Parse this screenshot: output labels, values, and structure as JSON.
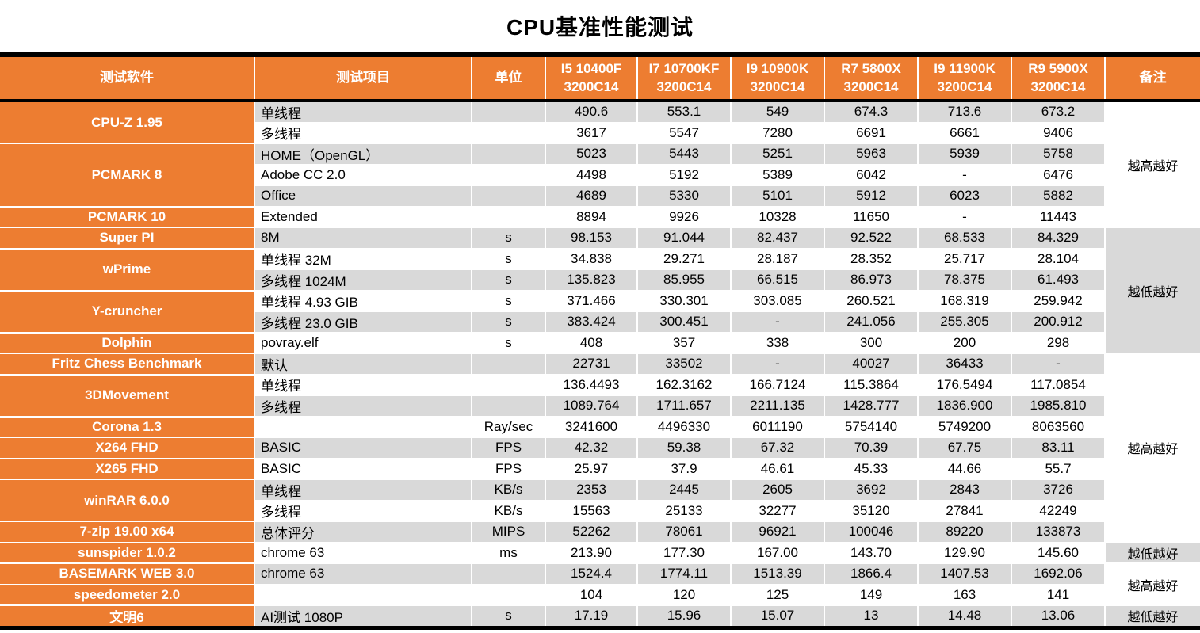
{
  "title": "CPU基准性能测试",
  "colors": {
    "orange": "#ED7D31",
    "row_gray": "#D9D9D9",
    "bar_black": "#000000",
    "header_text": "#FFFFFF",
    "body_text": "#000000"
  },
  "chart_data": {
    "type": "table",
    "title": "CPU基准性能测试",
    "header": {
      "software": "测试软件",
      "item": "测试项目",
      "unit": "单位",
      "cpus": [
        [
          "I5 10400F",
          "3200C14"
        ],
        [
          "I7 10700KF",
          "3200C14"
        ],
        [
          "I9 10900K",
          "3200C14"
        ],
        [
          "R7 5800X",
          "3200C14"
        ],
        [
          "I9 11900K",
          "3200C14"
        ],
        [
          "R9 5900X",
          "3200C14"
        ]
      ],
      "remark": "备注"
    },
    "groups": [
      {
        "software": "CPU-Z 1.95",
        "rows": [
          {
            "item": "单线程",
            "unit": "",
            "values": [
              "490.6",
              "553.1",
              "549",
              "674.3",
              "713.6",
              "673.2"
            ]
          },
          {
            "item": "多线程",
            "unit": "",
            "values": [
              "3617",
              "5547",
              "7280",
              "6691",
              "6661",
              "9406"
            ]
          }
        ]
      },
      {
        "software": "PCMARK 8",
        "rows": [
          {
            "item": "HOME（OpenGL）",
            "unit": "",
            "values": [
              "5023",
              "5443",
              "5251",
              "5963",
              "5939",
              "5758"
            ]
          },
          {
            "item": "Adobe CC 2.0",
            "unit": "",
            "values": [
              "4498",
              "5192",
              "5389",
              "6042",
              "-",
              "6476"
            ]
          },
          {
            "item": "Office",
            "unit": "",
            "values": [
              "4689",
              "5330",
              "5101",
              "5912",
              "6023",
              "5882"
            ]
          }
        ]
      },
      {
        "software": "PCMARK 10",
        "rows": [
          {
            "item": "Extended",
            "unit": "",
            "values": [
              "8894",
              "9926",
              "10328",
              "11650",
              "-",
              "11443"
            ]
          }
        ]
      },
      {
        "software": "Super PI",
        "rows": [
          {
            "item": "8M",
            "unit": "s",
            "values": [
              "98.153",
              "91.044",
              "82.437",
              "92.522",
              "68.533",
              "84.329"
            ]
          }
        ]
      },
      {
        "software": "wPrime",
        "rows": [
          {
            "item": "单线程 32M",
            "unit": "s",
            "values": [
              "34.838",
              "29.271",
              "28.187",
              "28.352",
              "25.717",
              "28.104"
            ]
          },
          {
            "item": "多线程 1024M",
            "unit": "s",
            "values": [
              "135.823",
              "85.955",
              "66.515",
              "86.973",
              "78.375",
              "61.493"
            ]
          }
        ]
      },
      {
        "software": "Y-cruncher",
        "rows": [
          {
            "item": "单线程 4.93 GIB",
            "unit": "s",
            "values": [
              "371.466",
              "330.301",
              "303.085",
              "260.521",
              "168.319",
              "259.942"
            ]
          },
          {
            "item": "多线程 23.0 GIB",
            "unit": "s",
            "values": [
              "383.424",
              "300.451",
              "-",
              "241.056",
              "255.305",
              "200.912"
            ]
          }
        ]
      },
      {
        "software": "Dolphin",
        "rows": [
          {
            "item": "povray.elf",
            "unit": "s",
            "values": [
              "408",
              "357",
              "338",
              "300",
              "200",
              "298"
            ]
          }
        ]
      },
      {
        "software": "Fritz Chess Benchmark",
        "rows": [
          {
            "item": "默认",
            "unit": "",
            "values": [
              "22731",
              "33502",
              "-",
              "40027",
              "36433",
              "-"
            ]
          }
        ]
      },
      {
        "software": "3DMovement",
        "rows": [
          {
            "item": "单线程",
            "unit": "",
            "values": [
              "136.4493",
              "162.3162",
              "166.7124",
              "115.3864",
              "176.5494",
              "117.0854"
            ]
          },
          {
            "item": "多线程",
            "unit": "",
            "values": [
              "1089.764",
              "1711.657",
              "2211.135",
              "1428.777",
              "1836.900",
              "1985.810"
            ]
          }
        ]
      },
      {
        "software": "Corona 1.3",
        "rows": [
          {
            "item": "",
            "unit": "Ray/sec",
            "values": [
              "3241600",
              "4496330",
              "6011190",
              "5754140",
              "5749200",
              "8063560"
            ]
          }
        ]
      },
      {
        "software": "X264 FHD",
        "rows": [
          {
            "item": "BASIC",
            "unit": "FPS",
            "values": [
              "42.32",
              "59.38",
              "67.32",
              "70.39",
              "67.75",
              "83.11"
            ]
          }
        ]
      },
      {
        "software": "X265 FHD",
        "rows": [
          {
            "item": "BASIC",
            "unit": "FPS",
            "values": [
              "25.97",
              "37.9",
              "46.61",
              "45.33",
              "44.66",
              "55.7"
            ]
          }
        ]
      },
      {
        "software": "winRAR 6.0.0",
        "rows": [
          {
            "item": "单线程",
            "unit": "KB/s",
            "values": [
              "2353",
              "2445",
              "2605",
              "3692",
              "2843",
              "3726"
            ]
          },
          {
            "item": "多线程",
            "unit": "KB/s",
            "values": [
              "15563",
              "25133",
              "32277",
              "35120",
              "27841",
              "42249"
            ]
          }
        ]
      },
      {
        "software": "7-zip 19.00 x64",
        "rows": [
          {
            "item": "总体评分",
            "unit": "MIPS",
            "values": [
              "52262",
              "78061",
              "96921",
              "100046",
              "89220",
              "133873"
            ]
          }
        ]
      },
      {
        "software": "sunspider 1.0.2",
        "rows": [
          {
            "item": "chrome 63",
            "unit": "ms",
            "values": [
              "213.90",
              "177.30",
              "167.00",
              "143.70",
              "129.90",
              "145.60"
            ]
          }
        ]
      },
      {
        "software": "BASEMARK WEB 3.0",
        "rows": [
          {
            "item": "chrome 63",
            "unit": "",
            "values": [
              "1524.4",
              "1774.11",
              "1513.39",
              "1866.4",
              "1407.53",
              "1692.06"
            ]
          }
        ]
      },
      {
        "software": "speedometer 2.0",
        "rows": [
          {
            "item": "",
            "unit": "",
            "values": [
              "104",
              "120",
              "125",
              "149",
              "163",
              "141"
            ]
          }
        ]
      },
      {
        "software": "文明6",
        "rows": [
          {
            "item": "AI测试 1080P",
            "unit": "s",
            "values": [
              "17.19",
              "15.96",
              "15.07",
              "13",
              "14.48",
              "13.06"
            ]
          }
        ]
      }
    ],
    "remark_spans": [
      {
        "label": "越高越好",
        "rows": 6,
        "shaded": false
      },
      {
        "label": "越低越好",
        "rows": 6,
        "shaded": true
      },
      {
        "label": "越高越好",
        "rows": 9,
        "shaded": false
      },
      {
        "label": "越低越好",
        "rows": 1,
        "shaded": true
      },
      {
        "label": "越高越好",
        "rows": 2,
        "shaded": false
      },
      {
        "label": "越低越好",
        "rows": 1,
        "shaded": true
      }
    ]
  }
}
